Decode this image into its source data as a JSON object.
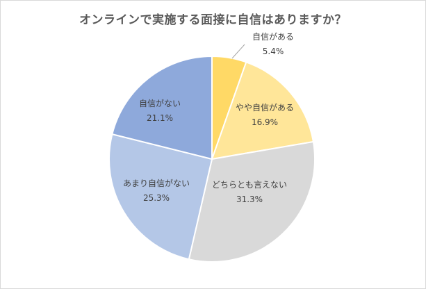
{
  "chart_data": {
    "type": "pie",
    "title": "オンラインで実施する面接に自信はありますか？",
    "slices": [
      {
        "label": "自信がある",
        "value": 5.4,
        "value_text": "5.4%",
        "color": "#FFD966"
      },
      {
        "label": "やや自信がある",
        "value": 16.9,
        "value_text": "16.9%",
        "color": "#FFE699"
      },
      {
        "label": "どちらとも言えない",
        "value": 31.3,
        "value_text": "31.3%",
        "color": "#D9D9D9"
      },
      {
        "label": "あまり自信がない",
        "value": 25.3,
        "value_text": "25.3%",
        "color": "#B4C7E7"
      },
      {
        "label": "自信がない",
        "value": 21.1,
        "value_text": "21.1%",
        "color": "#8EA9DB"
      }
    ],
    "start_angle_deg": 0,
    "direction": "clockwise",
    "legend": "none",
    "slice_border_color": "#ffffff"
  }
}
